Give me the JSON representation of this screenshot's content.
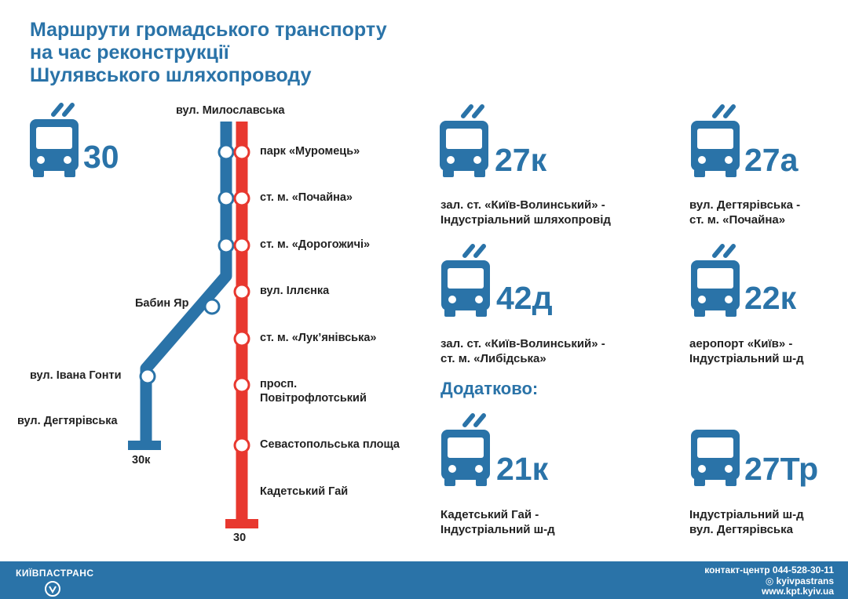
{
  "title": {
    "line1": "Маршрути громадського транспорту",
    "line2": "на час реконструкції",
    "line3": "Шулявського шляхопроводу"
  },
  "colors": {
    "accent": "#2a73a8",
    "red_line": "#e8382f",
    "blue_line": "#2a73a8"
  },
  "scheme": {
    "main_route": "30",
    "top_street": "вул. Милославська",
    "stops_right": [
      "парк «Муромець»",
      "ст. м. «Почайна»",
      "ст. м. «Дорогожичі»",
      "вул. Іллєнка",
      "ст. м. «Лук’янівська»",
      "просп.",
      "Повітрофлотський",
      "Севастопольська площа",
      "Кадетський Гай"
    ],
    "branch_stops": [
      "Бабин Яр",
      "вул. Івана Гонти",
      "вул. Дегтярівська"
    ],
    "end_blue": "30к",
    "end_red": "30"
  },
  "routes": [
    {
      "number": "27к",
      "line1": "зал. ст. «Київ-Волинський» -",
      "line2": "Індустріальний шляхопровід",
      "icon": "trolleybus-icon"
    },
    {
      "number": "27а",
      "line1": "вул. Дегтярівська -",
      "line2": "ст. м. «Почайна»",
      "icon": "bus-icon"
    },
    {
      "number": "42д",
      "line1": "зал. ст. «Київ-Волинський» -",
      "line2": "ст. м. «Либідська»",
      "icon": "trolleybus-icon"
    },
    {
      "number": "22к",
      "line1": "аеропорт «Київ» -",
      "line2": "Індустріальний ш-д",
      "icon": "trolleybus-icon"
    }
  ],
  "extra_heading": "Додатково:",
  "extra_routes": [
    {
      "number": "21к",
      "line1": "Кадетський Гай -",
      "line2": "Індустріальний ш-д",
      "icon": "trolleybus-icon"
    },
    {
      "number": "27Тр",
      "line1": "Індустріальний ш-д",
      "line2": "вул. Дегтярівська",
      "icon": "bus-icon"
    }
  ],
  "footer": {
    "brand": "КИЇВПАСТРАНС",
    "phone": "контакт-центр 044-528-30-11",
    "social": "◎ kyivpastrans",
    "site": "www.kpt.kyiv.ua"
  }
}
